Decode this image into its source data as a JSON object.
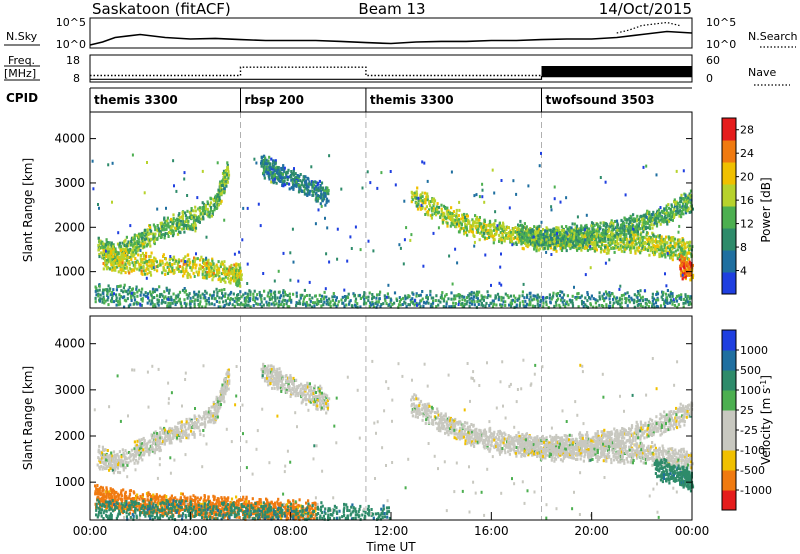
{
  "header": {
    "site": "Saskatoon (fitACF)",
    "beam": "Beam 13",
    "date": "14/Oct/2015"
  },
  "labels": {
    "nsky": "N.Sky",
    "nsearch": "N.Search",
    "freq": "Freq.",
    "freq_unit": "[MHz]",
    "nave": "Nave",
    "cpid": "CPID",
    "time_axis": "Time UT"
  },
  "colors": {
    "power": [
      "#1f3fe0",
      "#1f6fa0",
      "#2e8b6a",
      "#4caf50",
      "#b7d22c",
      "#f0c000",
      "#f07a10",
      "#e51c1c"
    ],
    "velocity": [
      "#e51c1c",
      "#f07a10",
      "#f0c000",
      "#c8c8c0",
      "#c8c8c0",
      "#4caf50",
      "#2e8b6a",
      "#1f6fa0",
      "#1f3fe0"
    ]
  },
  "chart_data": [
    {
      "type": "line",
      "panel": "noise",
      "x_ticks": [
        "00:00",
        "04:00",
        "08:00",
        "12:00",
        "16:00",
        "20:00",
        "00:00"
      ],
      "left_ticks": [
        "10^5",
        "10^0"
      ],
      "right_ticks": [
        "10^5",
        "10^0"
      ],
      "series": [
        {
          "name": "N.Sky",
          "style": "solid",
          "x_hours": [
            0,
            0.5,
            1,
            2,
            3,
            4,
            5,
            6,
            7,
            8,
            9,
            10,
            11,
            12,
            13,
            14,
            15,
            16,
            17,
            18,
            19,
            20,
            21,
            22,
            23,
            24
          ],
          "y_fraction": [
            0.1,
            0.2,
            0.35,
            0.45,
            0.35,
            0.3,
            0.32,
            0.28,
            0.25,
            0.25,
            0.25,
            0.22,
            0.18,
            0.15,
            0.2,
            0.22,
            0.22,
            0.25,
            0.25,
            0.28,
            0.3,
            0.3,
            0.35,
            0.45,
            0.55,
            0.5
          ]
        },
        {
          "name": "N.Search",
          "style": "dotted",
          "x_hours": [
            21,
            21.5,
            22,
            22.5,
            23,
            23.5
          ],
          "y_fraction": [
            0.5,
            0.6,
            0.75,
            0.8,
            0.85,
            0.75
          ]
        }
      ]
    },
    {
      "type": "line",
      "panel": "frequency",
      "left_ticks": [
        "18",
        "8"
      ],
      "right_ticks": [
        "60",
        "0"
      ],
      "series": [
        {
          "name": "Freq.",
          "style": "dotted",
          "x_hours": [
            0,
            6,
            6,
            11,
            11,
            24
          ],
          "y_mhz": [
            10.4,
            10.4,
            13.5,
            13.5,
            10.4,
            10.4
          ]
        },
        {
          "name": "Nave",
          "style": "solid",
          "x_hours": [
            0,
            18,
            18,
            24
          ],
          "y": [
            6,
            6,
            12,
            12
          ]
        }
      ]
    },
    {
      "type": "table",
      "panel": "cpid",
      "segments": [
        {
          "start_hour": 0,
          "label": "themis 3300"
        },
        {
          "start_hour": 6,
          "label": "rbsp 200"
        },
        {
          "start_hour": 11,
          "label": "themis 3300"
        },
        {
          "start_hour": 18,
          "label": "twofsound 3503"
        }
      ]
    },
    {
      "type": "heatmap",
      "panel": "power",
      "xlabel": "",
      "ylabel": "Slant Range [km]",
      "y_ticks": [
        "1000",
        "2000",
        "3000",
        "4000"
      ],
      "ylim": [
        180,
        4600
      ],
      "colorbar": {
        "label": "Power [dB]",
        "ticks": [
          "4",
          "8",
          "12",
          "16",
          "20",
          "24",
          "28"
        ],
        "range": [
          0,
          30
        ]
      },
      "bands": [
        {
          "x": [
            0.3,
            1,
            2,
            3,
            4,
            5,
            5.5
          ],
          "y": [
            1550,
            1400,
            1700,
            2000,
            2150,
            2550,
            3300
          ],
          "value": 14
        },
        {
          "x": [
            0.5,
            1.5,
            3,
            4.5,
            5.5,
            6
          ],
          "y": [
            1300,
            1200,
            1150,
            1100,
            950,
            900
          ],
          "value": 18
        },
        {
          "x": [
            0.2,
            2,
            4,
            6,
            8,
            10,
            12,
            14,
            16,
            18,
            20,
            22,
            24
          ],
          "y": [
            500,
            420,
            380,
            340,
            330,
            300,
            300,
            300,
            300,
            300,
            300,
            320,
            320
          ],
          "value": 10
        },
        {
          "x": [
            6.8,
            7.5,
            8.5,
            9.5
          ],
          "y": [
            3400,
            3200,
            2950,
            2700
          ],
          "value": 8
        },
        {
          "x": [
            12.8,
            14,
            15,
            16,
            17,
            18,
            19,
            20,
            21,
            22,
            23,
            24
          ],
          "y": [
            2700,
            2300,
            2050,
            1900,
            1800,
            1700,
            1700,
            1700,
            1650,
            1650,
            1550,
            1450
          ],
          "value": 16
        },
        {
          "x": [
            17,
            18,
            19,
            20,
            21,
            22,
            23,
            24
          ],
          "y": [
            1900,
            1750,
            1800,
            1850,
            1950,
            2100,
            2300,
            2600
          ],
          "value": 12
        },
        {
          "x": [
            23.5,
            24
          ],
          "y": [
            1100,
            1000
          ],
          "value": 26
        }
      ]
    },
    {
      "type": "heatmap",
      "panel": "velocity",
      "xlabel": "Time UT",
      "ylabel": "Slant Range [km]",
      "y_ticks": [
        "1000",
        "2000",
        "3000",
        "4000"
      ],
      "x_ticks": [
        "00:00",
        "04:00",
        "08:00",
        "12:00",
        "16:00",
        "20:00",
        "00:00"
      ],
      "ylim": [
        180,
        4600
      ],
      "colorbar": {
        "label": "Velocity [m s^-1]",
        "ticks": [
          "1000",
          "500",
          "100",
          "25",
          "-25",
          "-100",
          "-500",
          "-1000"
        ]
      },
      "bands": [
        {
          "x": [
            0.3,
            1,
            2,
            3,
            4,
            5,
            5.5
          ],
          "y": [
            1550,
            1400,
            1700,
            2000,
            2150,
            2550,
            3300
          ],
          "value": 0
        },
        {
          "x": [
            0.2,
            1,
            2,
            3,
            4,
            5,
            6,
            7,
            8,
            9
          ],
          "y": [
            700,
            600,
            550,
            500,
            500,
            450,
            450,
            400,
            380,
            350
          ],
          "value": -150
        },
        {
          "x": [
            0.2,
            2,
            4,
            6,
            8,
            10,
            12
          ],
          "y": [
            400,
            380,
            360,
            330,
            320,
            300,
            300
          ],
          "value": 150
        },
        {
          "x": [
            6.8,
            7.5,
            8.5,
            9.5
          ],
          "y": [
            3400,
            3200,
            2950,
            2700
          ],
          "value": 0
        },
        {
          "x": [
            12.8,
            14,
            15,
            16,
            17,
            18,
            19,
            20,
            21,
            22,
            23,
            24
          ],
          "y": [
            2700,
            2300,
            2050,
            1900,
            1800,
            1700,
            1700,
            1700,
            1650,
            1650,
            1550,
            1450
          ],
          "value": 0
        },
        {
          "x": [
            17,
            18,
            19,
            20,
            21,
            22,
            23,
            24
          ],
          "y": [
            1900,
            1750,
            1800,
            1850,
            1950,
            2100,
            2300,
            2600
          ],
          "value": 0
        },
        {
          "x": [
            22.5,
            23.5,
            24
          ],
          "y": [
            1300,
            1150,
            1000
          ],
          "value": 300
        }
      ]
    }
  ]
}
